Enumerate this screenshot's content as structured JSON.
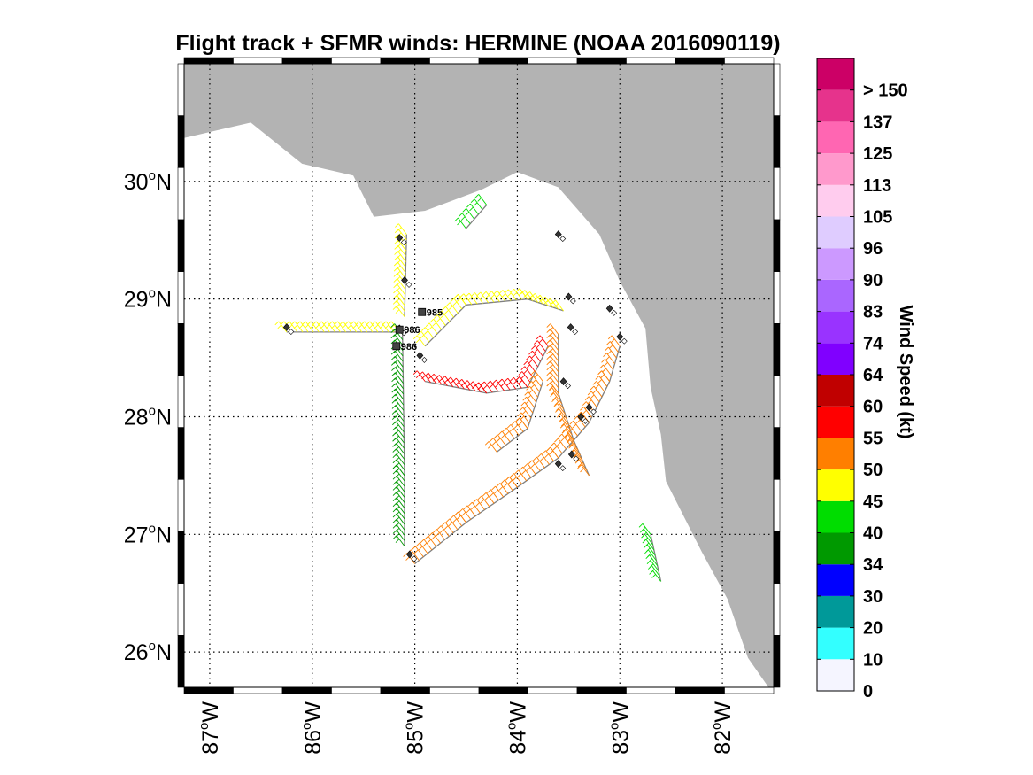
{
  "title": "Flight track + SFMR winds: HERMINE (NOAA 2016090119)",
  "map": {
    "lon_range": [
      -87.25,
      -81.5
    ],
    "lat_range": [
      25.7,
      31.0
    ],
    "land_color": "#b3b3b3",
    "ocean_color": "#ffffff",
    "track_color": "#808080",
    "grid": true,
    "lat_ticks": [
      {
        "value": 26,
        "label": "26",
        "sup": "o",
        "hemi": "N"
      },
      {
        "value": 27,
        "label": "27",
        "sup": "o",
        "hemi": "N"
      },
      {
        "value": 28,
        "label": "28",
        "sup": "o",
        "hemi": "N"
      },
      {
        "value": 29,
        "label": "29",
        "sup": "o",
        "hemi": "N"
      },
      {
        "value": 30,
        "label": "30",
        "sup": "o",
        "hemi": "N"
      }
    ],
    "lon_ticks": [
      {
        "value": -87,
        "label": "87",
        "sup": "o",
        "hemi": "W"
      },
      {
        "value": -86,
        "label": "86",
        "sup": "o",
        "hemi": "W"
      },
      {
        "value": -85,
        "label": "85",
        "sup": "o",
        "hemi": "W"
      },
      {
        "value": -84,
        "label": "84",
        "sup": "o",
        "hemi": "W"
      },
      {
        "value": -83,
        "label": "83",
        "sup": "o",
        "hemi": "W"
      },
      {
        "value": -82,
        "label": "82",
        "sup": "o",
        "hemi": "W"
      }
    ],
    "coastline": [
      [
        -87.25,
        30.37
      ],
      [
        -86.6,
        30.5
      ],
      [
        -86.1,
        30.15
      ],
      [
        -85.6,
        30.05
      ],
      [
        -85.4,
        29.7
      ],
      [
        -84.9,
        29.75
      ],
      [
        -84.35,
        29.93
      ],
      [
        -84.0,
        30.08
      ],
      [
        -83.6,
        29.95
      ],
      [
        -83.2,
        29.55
      ],
      [
        -83.0,
        29.15
      ],
      [
        -82.75,
        28.75
      ],
      [
        -82.7,
        28.25
      ],
      [
        -82.6,
        27.85
      ],
      [
        -82.55,
        27.45
      ],
      [
        -82.2,
        26.85
      ],
      [
        -81.95,
        26.45
      ],
      [
        -81.75,
        25.95
      ],
      [
        -81.55,
        25.7
      ]
    ],
    "pressure_labels": [
      {
        "lon": -84.93,
        "lat": 28.89,
        "text": "985"
      },
      {
        "lon": -85.15,
        "lat": 28.74,
        "text": "986"
      },
      {
        "lon": -85.18,
        "lat": 28.6,
        "text": "986"
      }
    ],
    "drops": [
      [
        -85.15,
        29.52
      ],
      [
        -85.1,
        29.16
      ],
      [
        -85.15,
        28.75
      ],
      [
        -84.95,
        28.52
      ],
      [
        -83.5,
        29.02
      ],
      [
        -83.48,
        28.76
      ],
      [
        -83.55,
        28.3
      ],
      [
        -83.47,
        27.68
      ],
      [
        -83.3,
        28.08
      ],
      [
        -83.1,
        28.92
      ],
      [
        -83.0,
        28.68
      ],
      [
        -86.25,
        28.76
      ],
      [
        -85.05,
        26.83
      ],
      [
        -83.6,
        29.55
      ],
      [
        -83.38,
        28.0
      ],
      [
        -83.6,
        27.6
      ]
    ],
    "segments": [
      {
        "path": [
          [
            -86.25,
            28.72
          ],
          [
            -85.15,
            28.72
          ]
        ],
        "color_kt": 45
      },
      {
        "path": [
          [
            -85.08,
            29.55
          ],
          [
            -85.1,
            28.85
          ]
        ],
        "color_kt": 45
      },
      {
        "path": [
          [
            -85.12,
            28.7
          ],
          [
            -85.1,
            27.5
          ],
          [
            -85.1,
            26.9
          ]
        ],
        "color_kt": 34
      },
      {
        "path": [
          [
            -84.9,
            28.3
          ],
          [
            -84.3,
            28.2
          ],
          [
            -83.9,
            28.25
          ],
          [
            -83.7,
            28.6
          ]
        ],
        "color_kt": 55
      },
      {
        "path": [
          [
            -84.9,
            28.6
          ],
          [
            -84.5,
            28.95
          ],
          [
            -83.9,
            29.0
          ],
          [
            -83.55,
            28.9
          ]
        ],
        "color_kt": 45
      },
      {
        "path": [
          [
            -85.0,
            26.75
          ],
          [
            -84.5,
            27.1
          ],
          [
            -84.0,
            27.4
          ],
          [
            -83.6,
            27.65
          ],
          [
            -83.3,
            27.95
          ],
          [
            -83.1,
            28.3
          ],
          [
            -83.0,
            28.6
          ]
        ],
        "color_kt": 50
      },
      {
        "path": [
          [
            -83.6,
            28.7
          ],
          [
            -83.6,
            28.2
          ],
          [
            -83.45,
            27.8
          ],
          [
            -83.3,
            27.5
          ]
        ],
        "color_kt": 50
      },
      {
        "path": [
          [
            -83.75,
            28.3
          ],
          [
            -83.9,
            27.9
          ],
          [
            -84.2,
            27.7
          ]
        ],
        "color_kt": 50
      },
      {
        "path": [
          [
            -84.5,
            29.6
          ],
          [
            -84.3,
            29.8
          ]
        ],
        "color_kt": 40
      },
      {
        "path": [
          [
            -82.7,
            27.0
          ],
          [
            -82.6,
            26.6
          ]
        ],
        "color_kt": 40
      }
    ]
  },
  "colorbar": {
    "label": "Wind Speed (kt)",
    "colors": [
      "#f5f5ff",
      "#33ffff",
      "#009999",
      "#0000ff",
      "#009900",
      "#00dd00",
      "#ffff00",
      "#ff7f00",
      "#ff0000",
      "#c00000",
      "#8000ff",
      "#9933ff",
      "#aa66ff",
      "#cc99ff",
      "#dfccff",
      "#ffccee",
      "#ff99cc",
      "#ff66b2",
      "#e6338c",
      "#cc0066"
    ],
    "tick_labels": [
      "0",
      "10",
      "20",
      "30",
      "34",
      "40",
      "45",
      "50",
      "55",
      "60",
      "64",
      "74",
      "83",
      "90",
      "96",
      "105",
      "113",
      "125",
      "137",
      "> 150"
    ]
  },
  "color_thresholds": [
    0,
    10,
    20,
    30,
    34,
    40,
    45,
    50,
    55,
    60,
    64,
    74,
    83,
    90,
    96,
    105,
    113,
    125,
    137,
    150
  ]
}
